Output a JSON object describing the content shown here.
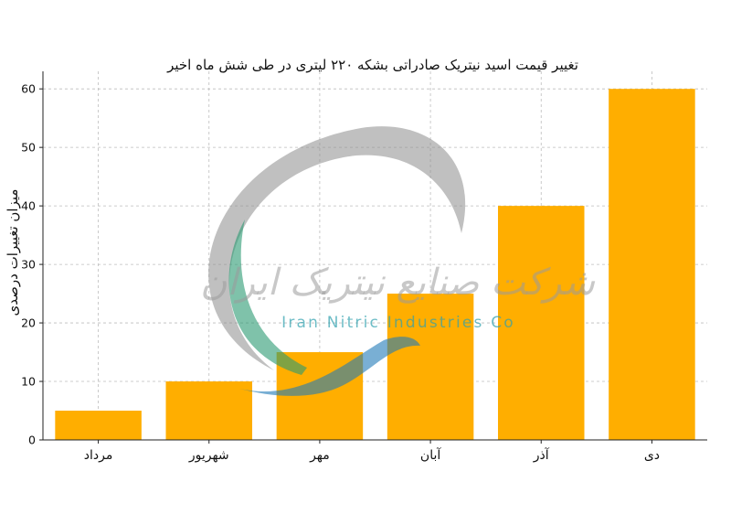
{
  "chart_data": {
    "type": "bar",
    "title": "تغییر قیمت اسید نیتریک صادراتی بشکه ۲۲۰ لیتری در طی شش ماه اخیر",
    "xlabel": "",
    "ylabel": "میزان تغییرات درصدی",
    "categories": [
      "مرداد",
      "شهریور",
      "مهر",
      "آبان",
      "آذر",
      "دی"
    ],
    "values": [
      5,
      10,
      15,
      25,
      40,
      60
    ],
    "ylim": [
      0,
      63
    ],
    "yticks": [
      0,
      10,
      20,
      30,
      40,
      50,
      60
    ],
    "bar_color": "#FFAE00",
    "grid": true
  },
  "watermark": {
    "name_fa": "شرکت صنایع نیتریک ایران",
    "name_en": "Iran Nitric Industries Co"
  }
}
